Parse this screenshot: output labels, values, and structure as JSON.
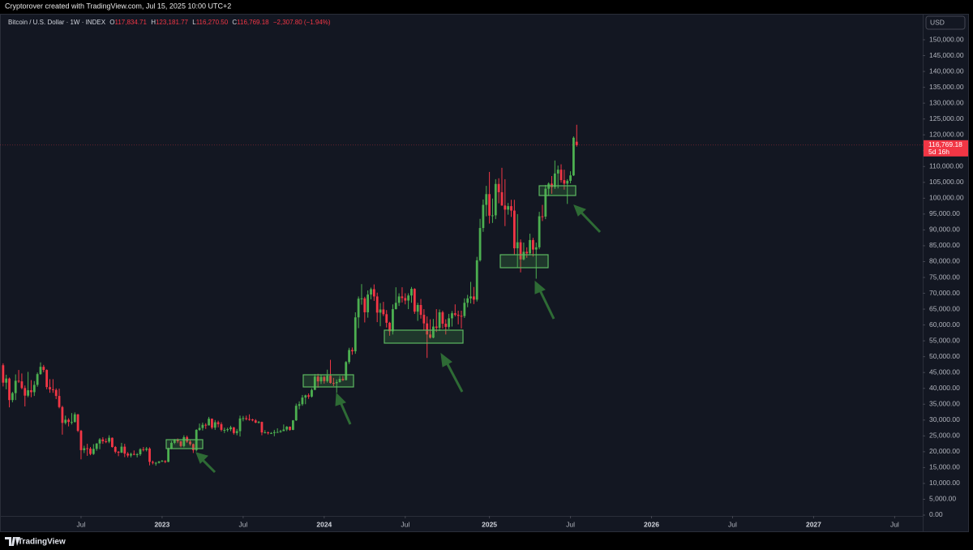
{
  "header": {
    "credit": "Cryptorover created with TradingView.com, Jul 15, 2025 10:00 UTC+2"
  },
  "legend_bar": {
    "symbol": "Bitcoin / U.S. Dollar · 1W · INDEX",
    "items": [
      {
        "key": "O",
        "value": "117,834.71"
      },
      {
        "key": "H",
        "value": "123,181.77"
      },
      {
        "key": "L",
        "value": "116,270.50"
      },
      {
        "key": "C",
        "value": "116,769.18"
      }
    ],
    "change": "−2,307.80 (−1.94%)"
  },
  "footer": {
    "brand": "TradingView"
  },
  "chart_data": {
    "type": "candlestick",
    "up_color": "#4caf50",
    "down_color": "#f23645",
    "grid": false,
    "y_axis_label": "USD",
    "last_price_label": "116,769.18",
    "countdown_label": "5d 16h",
    "open": [
      47300,
      41800,
      43100,
      36300,
      38500,
      42400,
      42200,
      40100,
      37700,
      39400,
      38800,
      41100,
      44500,
      46800,
      45800,
      40400,
      39700,
      39500,
      37600,
      34100,
      29100,
      30100,
      29400,
      29400,
      31800,
      26600,
      20500,
      21100,
      21000,
      19300,
      20900,
      22600,
      23900,
      23300,
      23200,
      24400,
      21500,
      20000,
      19700,
      21600,
      19400,
      18800,
      19300,
      19100,
      19200,
      20800,
      20600,
      21000,
      16800,
      16500,
      16500,
      16900,
      17100,
      16800,
      20900,
      22800,
      23800,
      23300,
      21800,
      24600,
      23200,
      22400,
      20500,
      26900,
      27500,
      28500,
      28300,
      30400,
      27600,
      29300,
      28700,
      26900,
      26900,
      27100,
      27700,
      25900,
      26500,
      30500,
      30600,
      30300,
      30200,
      29900,
      29200,
      29400,
      26100,
      26100,
      25900,
      25900,
      26200,
      26200,
      26500,
      27000,
      27900,
      26900,
      29900,
      34500,
      35000,
      37100,
      37800,
      37400,
      39500,
      43700,
      42200,
      43600,
      42300,
      44000,
      41700,
      41600,
      42000,
      43000,
      42600,
      48300,
      52100,
      51700,
      62400,
      68300,
      68400,
      64000,
      69600,
      71300,
      69000,
      63900,
      64900,
      63400,
      60700,
      58000,
      65000,
      67000,
      69000,
      68500,
      67700,
      69300,
      71400,
      64200,
      66300,
      63200,
      60500,
      57000,
      56000,
      59500,
      59100,
      64000,
      60400,
      59400,
      62100,
      63700,
      63200,
      62900,
      62800,
      67000,
      68400,
      69000,
      68000,
      80400,
      90600,
      97900,
      101300,
      94500,
      94600,
      104500,
      101900,
      97700,
      96400,
      97500,
      96100,
      84200,
      86100,
      80700,
      83100,
      82600,
      86800,
      83800,
      84500,
      94300,
      94200,
      103000,
      104600,
      103500,
      107800,
      109000,
      105700,
      104600,
      105500,
      107200,
      117834.71
    ],
    "high": [
      47900,
      44300,
      43400,
      38900,
      44400,
      45800,
      44700,
      40900,
      45200,
      42600,
      42300,
      45000,
      48200,
      47400,
      46000,
      42900,
      42900,
      40000,
      39900,
      34500,
      31400,
      30600,
      32200,
      32400,
      31900,
      26900,
      21900,
      22500,
      21500,
      22400,
      22700,
      24300,
      24600,
      24200,
      25200,
      24500,
      21800,
      20200,
      22800,
      22500,
      19900,
      19700,
      20400,
      19600,
      21100,
      21500,
      21500,
      21400,
      17200,
      16800,
      17100,
      17400,
      17300,
      21300,
      23400,
      24000,
      24200,
      23400,
      25200,
      25100,
      23900,
      22600,
      27100,
      28900,
      29200,
      29000,
      31000,
      30500,
      30000,
      29800,
      29300,
      27600,
      27600,
      28200,
      27800,
      27200,
      31400,
      31300,
      31400,
      31800,
      30400,
      30300,
      29700,
      29500,
      26800,
      26400,
      26200,
      26900,
      27400,
      26900,
      28600,
      28100,
      28000,
      30000,
      35200,
      35900,
      37900,
      38000,
      38400,
      40000,
      44500,
      44600,
      44400,
      43900,
      45900,
      49000,
      43300,
      42800,
      43900,
      43900,
      48600,
      52800,
      52900,
      64000,
      69000,
      72900,
      68900,
      70900,
      71800,
      72800,
      70200,
      66900,
      67300,
      64700,
      61000,
      66500,
      71900,
      70000,
      71900,
      70000,
      70000,
      72000,
      71600,
      67000,
      68200,
      65000,
      62700,
      61800,
      61900,
      65000,
      64900,
      64500,
      61800,
      63500,
      64400,
      66500,
      64500,
      64500,
      68400,
      69500,
      73600,
      72000,
      81500,
      93500,
      99600,
      103900,
      108300,
      99900,
      106000,
      106300,
      109600,
      106000,
      98500,
      99500,
      99500,
      95000,
      87000,
      86000,
      84500,
      88800,
      87500,
      86000,
      95700,
      97900,
      104200,
      105000,
      107000,
      111900,
      110300,
      110700,
      109000,
      106000,
      108500,
      119488,
      123181.77
    ],
    "low": [
      40600,
      39700,
      34000,
      35600,
      36300,
      41700,
      39700,
      34300,
      37200,
      37200,
      37600,
      40500,
      44300,
      45100,
      39700,
      38600,
      38600,
      36600,
      33700,
      25400,
      28600,
      28000,
      28600,
      29200,
      26200,
      17600,
      19600,
      18700,
      18900,
      19000,
      20300,
      20800,
      22500,
      22700,
      22700,
      21300,
      19500,
      18600,
      19600,
      18300,
      18200,
      18200,
      18900,
      18200,
      18700,
      20100,
      20100,
      15700,
      16000,
      15600,
      16300,
      16800,
      16400,
      16700,
      20800,
      22400,
      22700,
      21400,
      21400,
      22800,
      21900,
      19600,
      20100,
      26600,
      26700,
      27200,
      28300,
      27100,
      26900,
      27700,
      26400,
      25900,
      26300,
      26500,
      25400,
      25200,
      24800,
      29600,
      29900,
      29800,
      29600,
      29000,
      28900,
      25200,
      25800,
      25400,
      25600,
      24900,
      26000,
      26000,
      26500,
      26500,
      26600,
      26800,
      29700,
      33400,
      34500,
      35000,
      36700,
      37100,
      39500,
      40200,
      41400,
      41500,
      41800,
      41500,
      40700,
      38600,
      41800,
      42300,
      42500,
      47700,
      50600,
      50900,
      59000,
      66400,
      60800,
      62300,
      68100,
      67600,
      60900,
      59600,
      62800,
      59200,
      56600,
      57000,
      64900,
      66000,
      67100,
      66500,
      65000,
      67000,
      63500,
      61300,
      62000,
      58300,
      49600,
      55700,
      55800,
      57800,
      58100,
      58900,
      57000,
      58700,
      59500,
      62700,
      60200,
      58900,
      62200,
      65600,
      66800,
      66600,
      67400,
      80000,
      89400,
      94300,
      92000,
      92200,
      93400,
      98400,
      97600,
      91200,
      94800,
      94100,
      82300,
      78200,
      76600,
      80400,
      81200,
      82000,
      81600,
      74600,
      83900,
      92800,
      93400,
      100700,
      101400,
      102900,
      103100,
      104900,
      102700,
      98200,
      104700,
      107000,
      116270.5
    ],
    "close": [
      41800,
      43100,
      36300,
      38500,
      42400,
      42200,
      40100,
      37700,
      39400,
      38800,
      41100,
      44500,
      46800,
      45800,
      40400,
      39700,
      39500,
      37600,
      34100,
      29100,
      30100,
      29400,
      29400,
      31800,
      26600,
      20500,
      21100,
      21000,
      19300,
      20900,
      22600,
      23900,
      23300,
      23200,
      24400,
      21500,
      20000,
      19700,
      21600,
      19400,
      18800,
      19300,
      19100,
      19200,
      20800,
      20600,
      21000,
      16800,
      16500,
      16500,
      16900,
      17100,
      16800,
      20900,
      22800,
      23800,
      23300,
      21800,
      24600,
      23200,
      22400,
      20500,
      26900,
      27500,
      28500,
      28300,
      30400,
      27600,
      29300,
      28700,
      26900,
      26900,
      27100,
      27700,
      25900,
      26500,
      30500,
      30600,
      30300,
      30200,
      29900,
      29200,
      29400,
      26100,
      26100,
      25900,
      25900,
      26200,
      26200,
      26500,
      27000,
      27900,
      26900,
      29900,
      34500,
      35000,
      37100,
      37800,
      37400,
      39500,
      43700,
      42200,
      43600,
      42300,
      44000,
      41700,
      41600,
      42000,
      43000,
      42600,
      48300,
      52100,
      51700,
      62400,
      68300,
      68400,
      64000,
      69600,
      71300,
      69000,
      63900,
      64900,
      63400,
      60700,
      58000,
      65000,
      67000,
      69000,
      68500,
      67700,
      69300,
      71400,
      64200,
      66300,
      63200,
      60500,
      57000,
      56000,
      59500,
      59100,
      64000,
      60400,
      59400,
      62100,
      63700,
      63200,
      62900,
      62800,
      67000,
      68400,
      69000,
      68000,
      80400,
      90600,
      97900,
      101300,
      94500,
      94600,
      104500,
      101900,
      97700,
      96400,
      97500,
      96100,
      84200,
      86100,
      80700,
      83100,
      82600,
      86800,
      83800,
      84500,
      94300,
      94200,
      103000,
      104600,
      103500,
      107800,
      109000,
      105700,
      104600,
      105500,
      107200,
      119076.98,
      116769.18
    ],
    "xlim": [
      -1,
      295
    ],
    "xticks": [
      {
        "value": 25,
        "label": "Jul"
      },
      {
        "value": 51,
        "label": "2023"
      },
      {
        "value": 77,
        "label": "Jul"
      },
      {
        "value": 103,
        "label": "2024"
      },
      {
        "value": 129,
        "label": "Jul"
      },
      {
        "value": 156,
        "label": "2025"
      },
      {
        "value": 182,
        "label": "Jul"
      },
      {
        "value": 208,
        "label": "2026"
      },
      {
        "value": 234,
        "label": "Jul"
      },
      {
        "value": 260,
        "label": "2027"
      },
      {
        "value": 286,
        "label": "Jul"
      }
    ],
    "ylim": [
      -5120,
      152820
    ],
    "yticks": [
      {
        "value": 0,
        "label": "0.00"
      },
      {
        "value": 5000,
        "label": "5,000.00"
      },
      {
        "value": 10000,
        "label": "10,000.00"
      },
      {
        "value": 15000,
        "label": "15,000.00"
      },
      {
        "value": 20000,
        "label": "20,000.00"
      },
      {
        "value": 25000,
        "label": "25,000.00"
      },
      {
        "value": 30000,
        "label": "30,000.00"
      },
      {
        "value": 35000,
        "label": "35,000.00"
      },
      {
        "value": 40000,
        "label": "40,000.00"
      },
      {
        "value": 45000,
        "label": "45,000.00"
      },
      {
        "value": 50000,
        "label": "50,000.00"
      },
      {
        "value": 55000,
        "label": "55,000.00"
      },
      {
        "value": 60000,
        "label": "60,000.00"
      },
      {
        "value": 65000,
        "label": "65,000.00"
      },
      {
        "value": 70000,
        "label": "70,000.00"
      },
      {
        "value": 75000,
        "label": "75,000.00"
      },
      {
        "value": 80000,
        "label": "80,000.00"
      },
      {
        "value": 85000,
        "label": "85,000.00"
      },
      {
        "value": 90000,
        "label": "90,000.00"
      },
      {
        "value": 95000,
        "label": "95,000.00"
      },
      {
        "value": 100000,
        "label": "100,000.00"
      },
      {
        "value": 105000,
        "label": "105,000.00"
      },
      {
        "value": 110000,
        "label": "110,000.00"
      },
      {
        "value": 115000,
        "label": "115,000.00"
      },
      {
        "value": 120000,
        "label": "120,000.00"
      },
      {
        "value": 125000,
        "label": "125,000.00"
      },
      {
        "value": 130000,
        "label": "130,000.00"
      },
      {
        "value": 135000,
        "label": "135,000.00"
      },
      {
        "value": 140000,
        "label": "140,000.00"
      },
      {
        "value": 145000,
        "label": "145,000.00"
      },
      {
        "value": 150000,
        "label": "150,000.00"
      }
    ]
  }
}
